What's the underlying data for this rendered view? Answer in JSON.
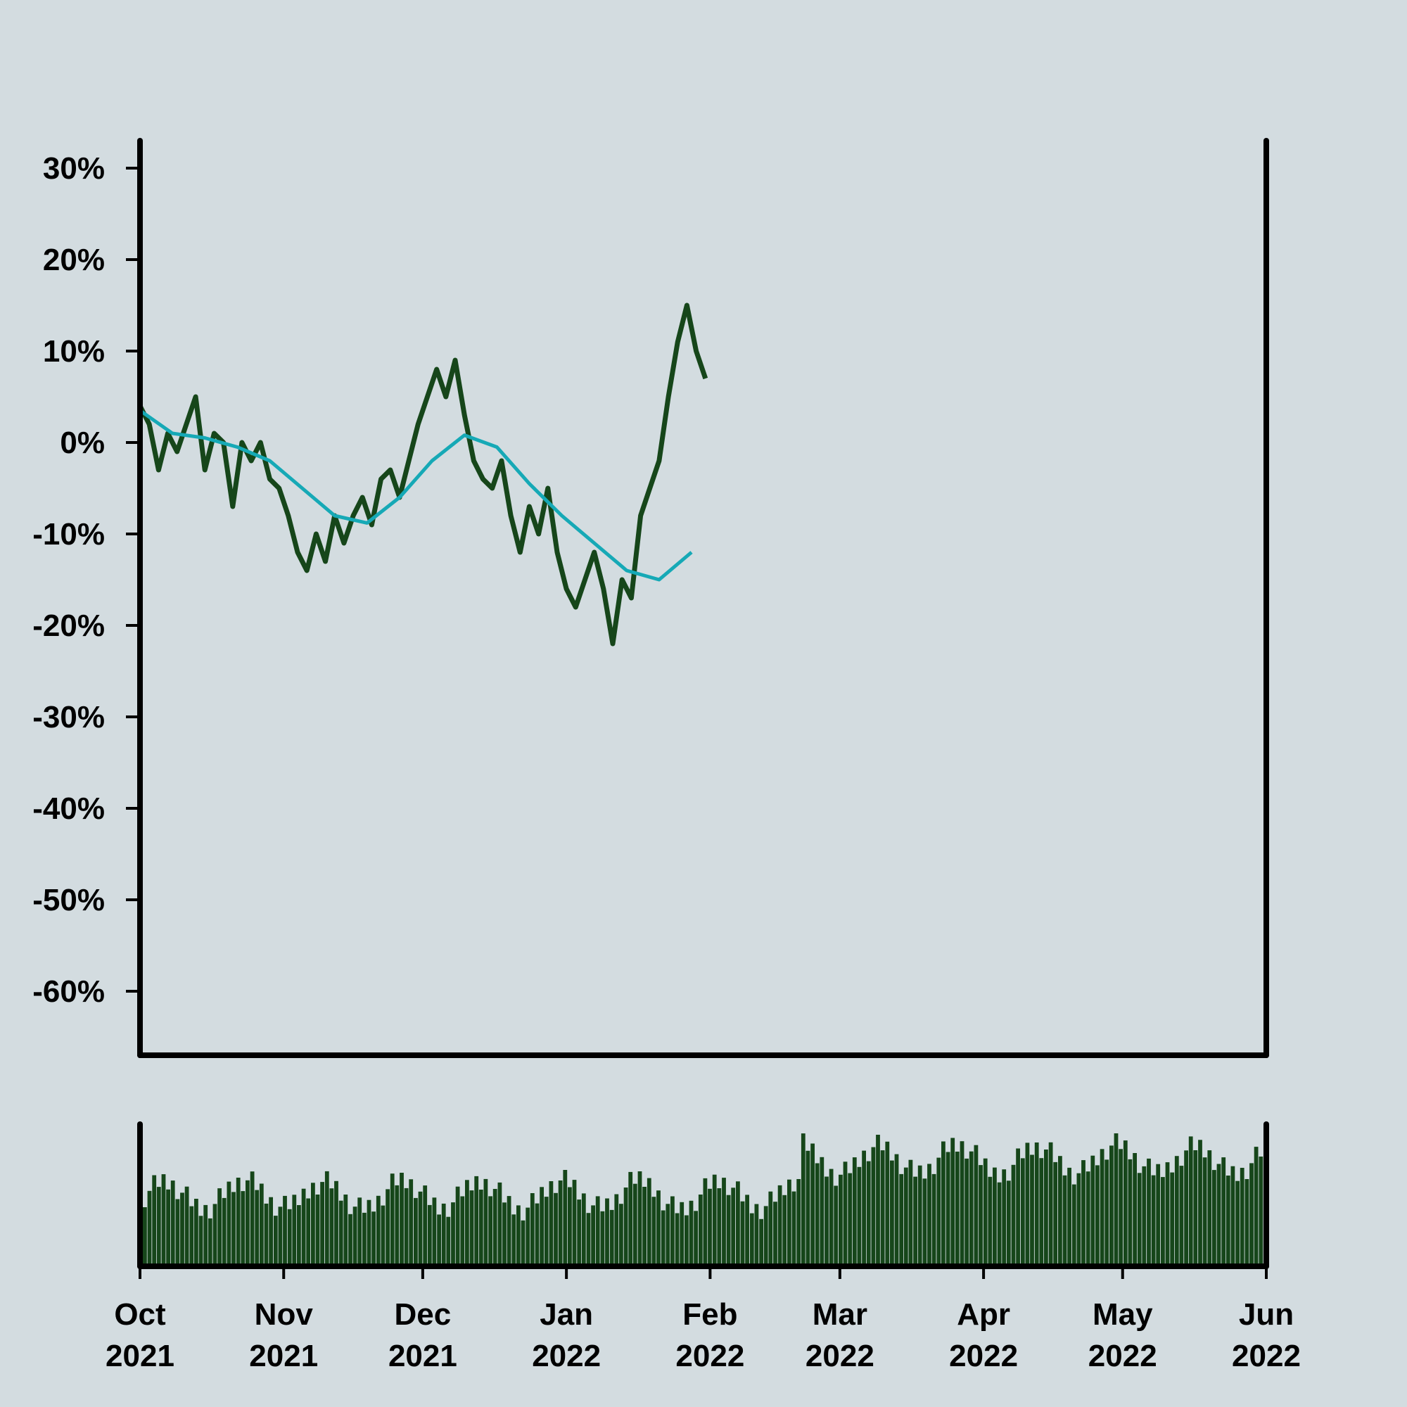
{
  "chart_data": {
    "type": "line",
    "title": "",
    "xlabel": "",
    "ylabel": "",
    "ylim": [
      -0.67,
      0.33
    ],
    "y_ticks": [
      {
        "value": 0.3,
        "label": "30%"
      },
      {
        "value": 0.2,
        "label": "20%"
      },
      {
        "value": 0.1,
        "label": "10%"
      },
      {
        "value": 0.0,
        "label": "0%"
      },
      {
        "value": -0.1,
        "label": "-10%"
      },
      {
        "value": -0.2,
        "label": "-20%"
      },
      {
        "value": -0.3,
        "label": "-30%"
      },
      {
        "value": -0.4,
        "label": "-40%"
      },
      {
        "value": -0.5,
        "label": "-50%"
      },
      {
        "value": -0.6,
        "label": "-60%"
      }
    ],
    "x_range": [
      "2021-10-01",
      "2022-06-01"
    ],
    "x_ticks": [
      {
        "date": "2021-10-01",
        "line1": "Oct",
        "line2": "2021"
      },
      {
        "date": "2021-11-01",
        "line1": "Nov",
        "line2": "2021"
      },
      {
        "date": "2021-12-01",
        "line1": "Dec",
        "line2": "2021"
      },
      {
        "date": "2022-01-01",
        "line1": "Jan",
        "line2": "2022"
      },
      {
        "date": "2022-02-01",
        "line1": "Feb",
        "line2": "2022"
      },
      {
        "date": "2022-03-01",
        "line1": "Mar",
        "line2": "2022"
      },
      {
        "date": "2022-04-01",
        "line1": "Apr",
        "line2": "2022"
      },
      {
        "date": "2022-05-01",
        "line1": "May",
        "line2": "2022"
      },
      {
        "date": "2022-06-01",
        "line1": "Jun",
        "line2": "2022"
      }
    ],
    "colors": {
      "price": "#16461a",
      "moving_average": "#16a9b6",
      "volume": "#16461a",
      "axis": "#000000",
      "background": "#d3dce0"
    },
    "series": [
      {
        "key": "price",
        "points": [
          [
            "2021-10-01",
            0.04
          ],
          [
            "2021-10-03",
            0.02
          ],
          [
            "2021-10-05",
            -0.03
          ],
          [
            "2021-10-07",
            0.01
          ],
          [
            "2021-10-09",
            -0.01
          ],
          [
            "2021-10-11",
            0.02
          ],
          [
            "2021-10-13",
            0.05
          ],
          [
            "2021-10-15",
            -0.03
          ],
          [
            "2021-10-17",
            0.01
          ],
          [
            "2021-10-19",
            0.0
          ],
          [
            "2021-10-21",
            -0.07
          ],
          [
            "2021-10-23",
            0.0
          ],
          [
            "2021-10-25",
            -0.02
          ],
          [
            "2021-10-27",
            0.0
          ],
          [
            "2021-10-29",
            -0.04
          ],
          [
            "2021-10-31",
            -0.05
          ],
          [
            "2021-11-02",
            -0.08
          ],
          [
            "2021-11-04",
            -0.12
          ],
          [
            "2021-11-06",
            -0.14
          ],
          [
            "2021-11-08",
            -0.1
          ],
          [
            "2021-11-10",
            -0.13
          ],
          [
            "2021-11-12",
            -0.08
          ],
          [
            "2021-11-14",
            -0.11
          ],
          [
            "2021-11-16",
            -0.08
          ],
          [
            "2021-11-18",
            -0.06
          ],
          [
            "2021-11-20",
            -0.09
          ],
          [
            "2021-11-22",
            -0.04
          ],
          [
            "2021-11-24",
            -0.03
          ],
          [
            "2021-11-26",
            -0.06
          ],
          [
            "2021-11-28",
            -0.02
          ],
          [
            "2021-11-30",
            0.02
          ],
          [
            "2021-12-02",
            0.05
          ],
          [
            "2021-12-04",
            0.08
          ],
          [
            "2021-12-06",
            0.05
          ],
          [
            "2021-12-08",
            0.09
          ],
          [
            "2021-12-10",
            0.03
          ],
          [
            "2021-12-12",
            -0.02
          ],
          [
            "2021-12-14",
            -0.04
          ],
          [
            "2021-12-16",
            -0.05
          ],
          [
            "2021-12-18",
            -0.02
          ],
          [
            "2021-12-20",
            -0.08
          ],
          [
            "2021-12-22",
            -0.12
          ],
          [
            "2021-12-24",
            -0.07
          ],
          [
            "2021-12-26",
            -0.1
          ],
          [
            "2021-12-28",
            -0.05
          ],
          [
            "2021-12-30",
            -0.12
          ],
          [
            "2022-01-01",
            -0.16
          ],
          [
            "2022-01-03",
            -0.18
          ],
          [
            "2022-01-05",
            -0.15
          ],
          [
            "2022-01-07",
            -0.12
          ],
          [
            "2022-01-09",
            -0.16
          ],
          [
            "2022-01-11",
            -0.22
          ],
          [
            "2022-01-13",
            -0.15
          ],
          [
            "2022-01-15",
            -0.17
          ],
          [
            "2022-01-17",
            -0.08
          ],
          [
            "2022-01-19",
            -0.05
          ],
          [
            "2022-01-21",
            -0.02
          ],
          [
            "2022-01-23",
            0.05
          ],
          [
            "2022-01-25",
            0.11
          ],
          [
            "2022-01-27",
            0.15
          ],
          [
            "2022-01-29",
            0.1
          ],
          [
            "2022-01-31",
            0.07
          ]
        ]
      },
      {
        "key": "moving_average",
        "points": [
          [
            "2021-10-01",
            0.035
          ],
          [
            "2021-10-08",
            0.01
          ],
          [
            "2021-10-15",
            0.005
          ],
          [
            "2021-10-22",
            -0.005
          ],
          [
            "2021-10-29",
            -0.02
          ],
          [
            "2021-11-05",
            -0.05
          ],
          [
            "2021-11-12",
            -0.08
          ],
          [
            "2021-11-19",
            -0.088
          ],
          [
            "2021-11-26",
            -0.06
          ],
          [
            "2021-12-03",
            -0.02
          ],
          [
            "2021-12-10",
            0.008
          ],
          [
            "2021-12-17",
            -0.005
          ],
          [
            "2021-12-24",
            -0.045
          ],
          [
            "2021-12-31",
            -0.08
          ],
          [
            "2022-01-07",
            -0.11
          ],
          [
            "2022-01-14",
            -0.14
          ],
          [
            "2022-01-21",
            -0.15
          ],
          [
            "2022-01-28",
            -0.12
          ]
        ]
      }
    ]
  }
}
